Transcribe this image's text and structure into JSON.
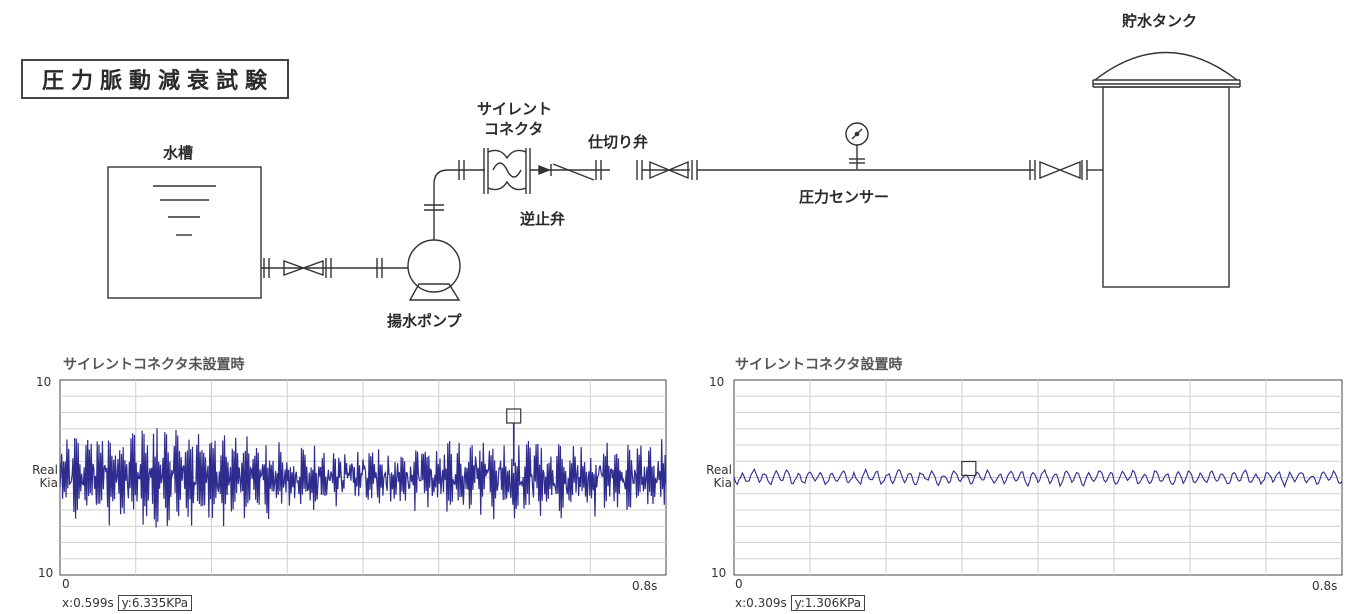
{
  "title": "圧力脈動減衰試験",
  "diagram": {
    "tank_label": "水槽",
    "pump_label": "揚水ポンプ",
    "silent_connector_line1": "サイレント",
    "silent_connector_line2": "コネクタ",
    "check_valve_label": "逆止弁",
    "gate_valve_label": "仕切り弁",
    "pressure_sensor_label": "圧力センサー",
    "storage_tank_label": "貯水タンク"
  },
  "charts": [
    {
      "title": "サイレントコネクタ未設置時",
      "y_top_label": "10",
      "y_bottom_label": "10",
      "y_label_line1": "Real",
      "y_label_line2": "Kia",
      "x_start_label": "0",
      "x_end_label": "0.8s",
      "readout_x": "x:0.599s",
      "readout_y": "y:6.335KPa",
      "cursor_t": 0.599,
      "amplitude": "large"
    },
    {
      "title": "サイレントコネクタ設置時",
      "y_top_label": "10",
      "y_bottom_label": "10",
      "y_label_line1": "Real",
      "y_label_line2": "Kia",
      "x_start_label": "0",
      "x_end_label": "0.8s",
      "readout_x": "x:0.309s",
      "readout_y": "y:1.306KPa",
      "cursor_t": 0.309,
      "amplitude": "small"
    }
  ],
  "chart_data": [
    {
      "type": "line",
      "title": "サイレントコネクタ未設置時",
      "xlim": [
        0,
        0.8
      ],
      "cursor": {
        "x": 0.599,
        "y": 6.335
      },
      "series": [
        {
          "values_description": "",
          "color": "#2e2d8f"
        }
      ]
    },
    {
      "type": "line",
      "title": "サイレントコネクタ設置時",
      "xlim": [
        0,
        0.8
      ],
      "cursor": {
        "x": 0.309,
        "y": 1.306
      },
      "series": [
        {
          "color": "#2e2d8f"
        }
      ]
    }
  ],
  "colors": {
    "line": "#2e2d8f",
    "grid": "#cfcfcf",
    "ink": "#333333"
  }
}
